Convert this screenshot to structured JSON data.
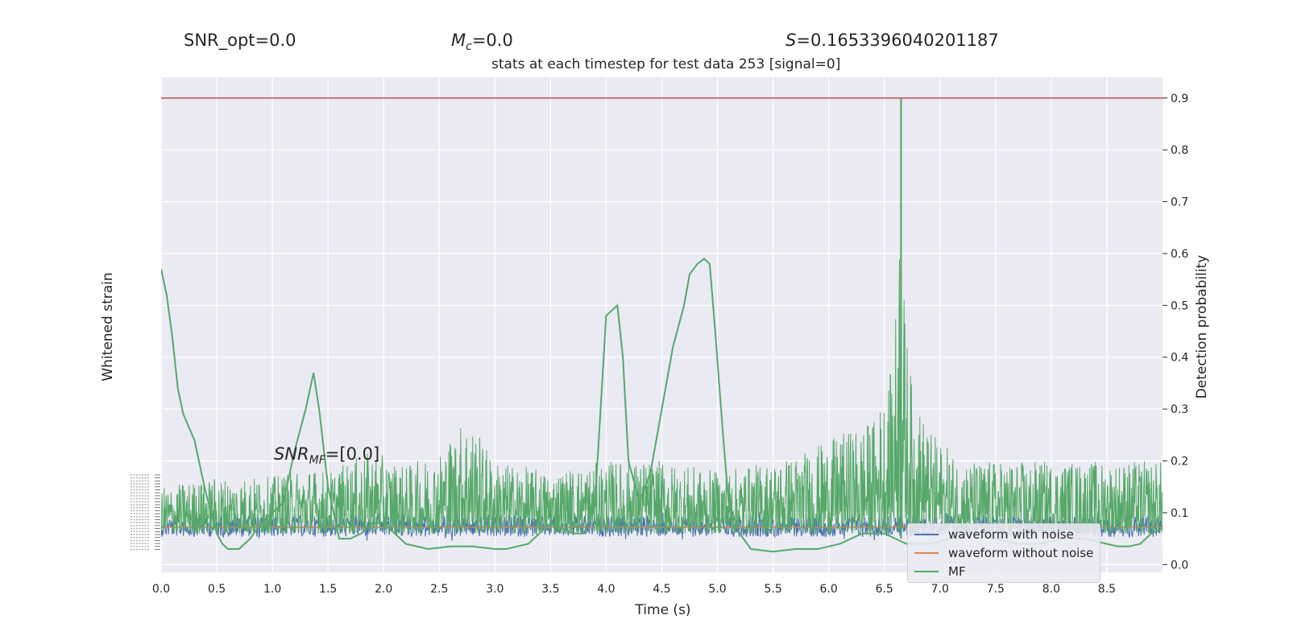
{
  "header": {
    "snr_opt": "SNR_opt=0.0",
    "mc_symbol": "M",
    "mc_sub": "c",
    "mc_value": "=0.0",
    "s_symbol": "S",
    "s_value": "=0.1653396040201187",
    "subtitle": "stats at each timestep for test data 253 [signal=0]",
    "snr_mf_symbol": "SNR",
    "snr_mf_sub": "MF",
    "snr_mf_value": "=[0.0]"
  },
  "colors": {
    "plot_bg": "#eaeaf2",
    "grid": "#ffffff",
    "noise": "#4c72b0",
    "clean": "#dd8452",
    "mf": "#55a868",
    "threshold": "#c44e52"
  },
  "chart_data": {
    "type": "line",
    "xlabel": "Time (s)",
    "ylabel_left": "Whitened strain",
    "ylabel_right": "Detection probability",
    "xlim": [
      0.0,
      9.0
    ],
    "ylim_right": [
      -0.015,
      0.94
    ],
    "x_ticks": [
      "0.0",
      "0.5",
      "1.0",
      "1.5",
      "2.0",
      "2.5",
      "3.0",
      "3.5",
      "4.0",
      "4.5",
      "5.0",
      "5.5",
      "6.0",
      "6.5",
      "7.0",
      "7.5",
      "8.0",
      "8.5"
    ],
    "y_ticks_right": [
      "0.0",
      "0.1",
      "0.2",
      "0.3",
      "0.4",
      "0.5",
      "0.6",
      "0.7",
      "0.8",
      "0.9"
    ],
    "threshold": 0.9,
    "legend": [
      "waveform with noise",
      "waveform without noise",
      "MF"
    ],
    "legend_position": "lower-right",
    "grid": true,
    "mf_smooth": {
      "x": [
        0.0,
        0.05,
        0.1,
        0.15,
        0.2,
        0.3,
        0.4,
        0.5,
        0.55,
        0.6,
        0.7,
        0.8,
        0.9,
        1.0,
        1.1,
        1.2,
        1.3,
        1.37,
        1.42,
        1.5,
        1.6,
        1.7,
        1.8,
        1.9,
        2.0,
        2.2,
        2.4,
        2.6,
        2.8,
        3.0,
        3.1,
        3.3,
        3.5,
        3.6,
        3.7,
        3.8,
        3.9,
        4.0,
        4.05,
        4.1,
        4.15,
        4.2,
        4.3,
        4.4,
        4.5,
        4.6,
        4.7,
        4.75,
        4.82,
        4.88,
        4.93,
        4.98,
        5.05,
        5.1,
        5.2,
        5.3,
        5.5,
        5.7,
        5.9,
        6.1,
        6.3,
        6.5,
        6.7,
        6.9,
        7.1,
        7.3,
        7.5,
        7.7,
        7.9,
        8.1,
        8.3,
        8.5,
        8.6,
        8.7,
        8.8,
        8.9,
        9.0
      ],
      "y": [
        0.57,
        0.52,
        0.44,
        0.34,
        0.29,
        0.24,
        0.14,
        0.06,
        0.04,
        0.03,
        0.03,
        0.05,
        0.08,
        0.1,
        0.12,
        0.22,
        0.3,
        0.37,
        0.3,
        0.15,
        0.05,
        0.05,
        0.06,
        0.08,
        0.08,
        0.04,
        0.03,
        0.035,
        0.035,
        0.03,
        0.03,
        0.04,
        0.08,
        0.07,
        0.06,
        0.06,
        0.12,
        0.48,
        0.49,
        0.5,
        0.4,
        0.2,
        0.12,
        0.18,
        0.3,
        0.42,
        0.5,
        0.56,
        0.58,
        0.59,
        0.58,
        0.45,
        0.25,
        0.12,
        0.06,
        0.03,
        0.025,
        0.03,
        0.03,
        0.04,
        0.06,
        0.06,
        0.04,
        0.04,
        0.05,
        0.06,
        0.05,
        0.04,
        0.04,
        0.05,
        0.05,
        0.04,
        0.035,
        0.035,
        0.04,
        0.06,
        0.07
      ]
    },
    "mf_envelope": {
      "x": [
        0.0,
        0.5,
        1.0,
        1.3,
        1.5,
        1.9,
        2.2,
        2.5,
        2.75,
        3.0,
        3.5,
        4.0,
        4.5,
        5.0,
        5.5,
        5.8,
        6.1,
        6.4,
        6.55,
        6.62,
        6.65,
        6.68,
        6.75,
        6.9,
        7.2,
        7.6,
        8.0,
        8.5,
        9.0
      ],
      "y": [
        0.15,
        0.17,
        0.17,
        0.19,
        0.18,
        0.22,
        0.19,
        0.22,
        0.29,
        0.2,
        0.18,
        0.2,
        0.2,
        0.18,
        0.2,
        0.22,
        0.25,
        0.28,
        0.36,
        0.55,
        0.9,
        0.5,
        0.34,
        0.26,
        0.2,
        0.2,
        0.2,
        0.2,
        0.2
      ]
    }
  }
}
